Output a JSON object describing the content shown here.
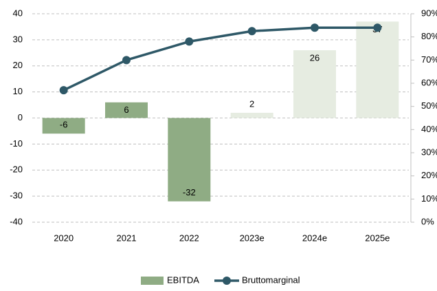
{
  "chart_data": {
    "type": "bar_line",
    "categories": [
      "2020",
      "2021",
      "2022",
      "2023e",
      "2024e",
      "2025e"
    ],
    "series": [
      {
        "name": "EBITDA",
        "type": "bar",
        "color": "#8fac84",
        "colors": [
          "#8fac84",
          "#8fac84",
          "#8fac84",
          "#e6ece1",
          "#e6ece1",
          "#e6ece1"
        ],
        "values": [
          -6,
          6,
          -32,
          2,
          26,
          37
        ]
      },
      {
        "name": "Bruttomarginal",
        "type": "line",
        "axis": "y2",
        "color": "#2e5867",
        "values": [
          57,
          70,
          78,
          82.5,
          84,
          84
        ]
      }
    ],
    "ylim": [
      -40,
      40
    ],
    "yticks": [
      -40,
      -30,
      -20,
      -10,
      0,
      10,
      20,
      30,
      40
    ],
    "y2lim": [
      0,
      90
    ],
    "y2ticks": [
      {
        "value": 0,
        "label": "0%"
      },
      {
        "value": 10,
        "label": "10%"
      },
      {
        "value": 20,
        "label": "20%"
      },
      {
        "value": 30,
        "label": "30%"
      },
      {
        "value": 40,
        "label": "40%"
      },
      {
        "value": 50,
        "label": "50%"
      },
      {
        "value": 60,
        "label": "60%"
      },
      {
        "value": 70,
        "label": "70%"
      },
      {
        "value": 80,
        "label": "80%"
      },
      {
        "value": 90,
        "label": "90%"
      }
    ],
    "grid": true,
    "legend": "bottom"
  }
}
